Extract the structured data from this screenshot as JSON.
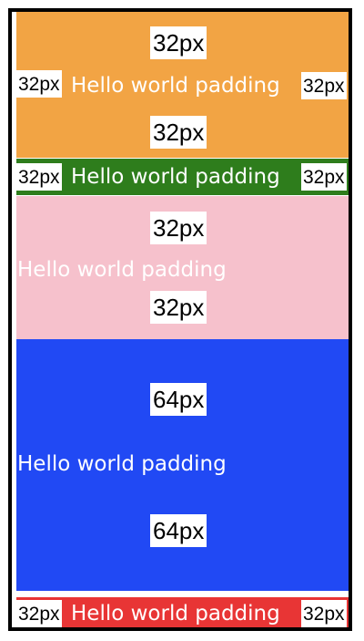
{
  "blocks": [
    {
      "id": "orange",
      "color": "#F2A444",
      "text": "Hello world padding",
      "top_label": "32px",
      "left_label": "32px",
      "right_label": "32px",
      "bottom_label": "32px"
    },
    {
      "id": "green",
      "color": "#2E7D1C",
      "text": "Hello world padding",
      "left_label": "32px",
      "right_label": "32px"
    },
    {
      "id": "pink",
      "color": "#F6C1CC",
      "text": "Hello world padding",
      "top_label": "32px",
      "bottom_label": "32px"
    },
    {
      "id": "blue",
      "color": "#2149F4",
      "text": "Hello world padding",
      "top_label": "64px",
      "bottom_label": "64px"
    },
    {
      "id": "red",
      "color": "#E83535",
      "text": "Hello world padding",
      "left_label": "32px",
      "right_label": "32px"
    }
  ]
}
